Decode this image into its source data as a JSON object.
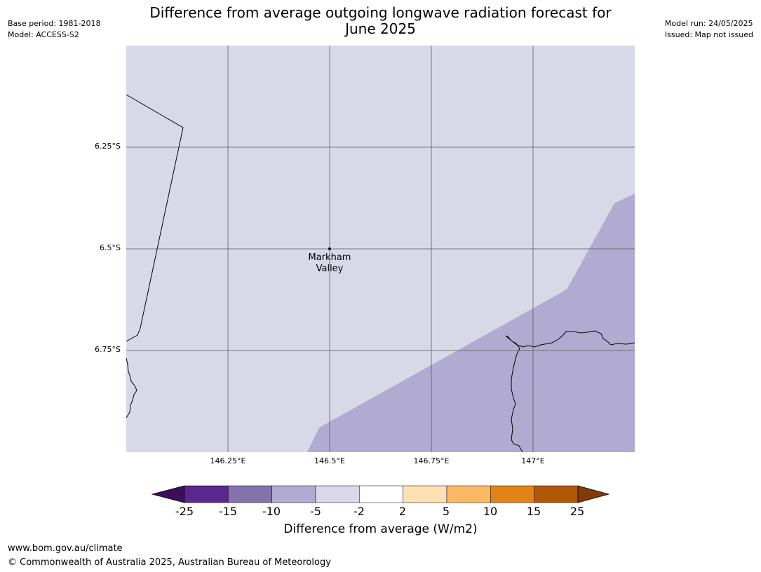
{
  "header": {
    "title_line1": "Difference from average outgoing longwave radiation forecast for",
    "title_line2": "June 2025",
    "base_period": "Base period: 1981-2018",
    "model": "Model: ACCESS-S2",
    "model_run": "Model run: 24/05/2025",
    "issued": "Issued: Map not issued"
  },
  "map": {
    "latitude_labels": [
      "6.25°S",
      "6.5°S",
      "6.75°S"
    ],
    "longitude_labels": [
      "146.25°E",
      "146.5°E",
      "146.75°E",
      "147°E"
    ],
    "place": {
      "name_line1": "Markham",
      "name_line2": "Valley"
    },
    "fill_colors": {
      "background_category": "#d8d8e9",
      "lower_category": "#b1abd2"
    }
  },
  "colorbar": {
    "ticks": [
      "-25",
      "-15",
      "-10",
      "-5",
      "-2",
      "2",
      "5",
      "10",
      "15",
      "25"
    ],
    "colors": [
      "#3b0f5a",
      "#5a2690",
      "#8473ad",
      "#b1abd2",
      "#d8d8e9",
      "#ffffff",
      "#fee0b5",
      "#fbb864",
      "#e2831a",
      "#b35806",
      "#7f3b08"
    ],
    "label": "Difference from average (W/m2)"
  },
  "footer": {
    "url": "www.bom.gov.au/climate",
    "copyright": "© Commonwealth of Australia 2025, Australian Bureau of Meteorology"
  }
}
